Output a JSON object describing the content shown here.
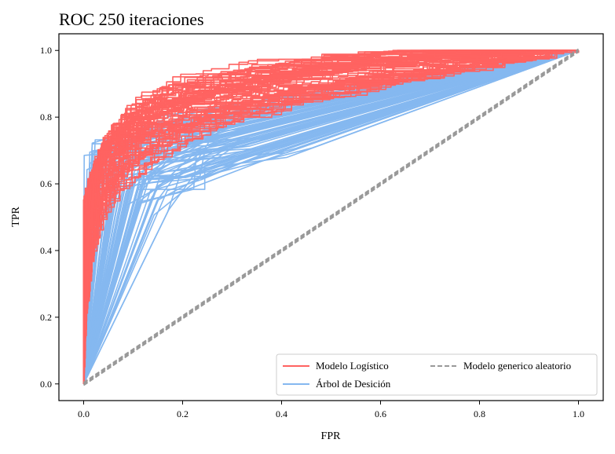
{
  "chart_data": {
    "type": "line",
    "title": "ROC 250 iteraciones",
    "xlabel": "FPR",
    "ylabel": "TPR",
    "xlim": [
      -0.05,
      1.05
    ],
    "ylim": [
      -0.05,
      1.05
    ],
    "xticks": [
      0.0,
      0.2,
      0.4,
      0.6,
      0.8,
      1.0
    ],
    "yticks": [
      0.0,
      0.2,
      0.4,
      0.6,
      0.8,
      1.0
    ],
    "xtick_labels": [
      "0.0",
      "0.2",
      "0.4",
      "0.6",
      "0.8",
      "1.0"
    ],
    "ytick_labels": [
      "0.0",
      "0.2",
      "0.4",
      "0.6",
      "0.8",
      "1.0"
    ],
    "grid": false,
    "legend_position": "lower-right",
    "iterations": 250,
    "series": [
      {
        "name": "Modelo Logístico",
        "color": "#ff6361",
        "line_style": "solid",
        "representative_curves": [
          [
            [
              0,
              0
            ],
            [
              0,
              0.3
            ],
            [
              0.01,
              0.5
            ],
            [
              0.02,
              0.6
            ],
            [
              0.05,
              0.68
            ],
            [
              0.1,
              0.76
            ],
            [
              0.15,
              0.82
            ],
            [
              0.25,
              0.87
            ],
            [
              0.4,
              0.92
            ],
            [
              0.6,
              0.96
            ],
            [
              0.8,
              0.99
            ],
            [
              1,
              1
            ]
          ],
          [
            [
              0,
              0
            ],
            [
              0,
              0.25
            ],
            [
              0.015,
              0.45
            ],
            [
              0.03,
              0.55
            ],
            [
              0.06,
              0.64
            ],
            [
              0.1,
              0.72
            ],
            [
              0.18,
              0.78
            ],
            [
              0.3,
              0.83
            ],
            [
              0.45,
              0.88
            ],
            [
              0.65,
              0.93
            ],
            [
              0.85,
              0.98
            ],
            [
              1,
              1
            ]
          ],
          [
            [
              0,
              0
            ],
            [
              0.005,
              0.35
            ],
            [
              0.02,
              0.52
            ],
            [
              0.04,
              0.63
            ],
            [
              0.08,
              0.7
            ],
            [
              0.13,
              0.77
            ],
            [
              0.2,
              0.82
            ],
            [
              0.35,
              0.88
            ],
            [
              0.5,
              0.92
            ],
            [
              0.7,
              0.96
            ],
            [
              0.9,
              0.99
            ],
            [
              1,
              1
            ]
          ],
          [
            [
              0,
              0
            ],
            [
              0,
              0.4
            ],
            [
              0.01,
              0.55
            ],
            [
              0.04,
              0.66
            ],
            [
              0.09,
              0.74
            ],
            [
              0.15,
              0.8
            ],
            [
              0.22,
              0.85
            ],
            [
              0.38,
              0.9
            ],
            [
              0.55,
              0.94
            ],
            [
              0.75,
              0.98
            ],
            [
              1,
              1
            ]
          ],
          [
            [
              0,
              0
            ],
            [
              0.01,
              0.3
            ],
            [
              0.03,
              0.5
            ],
            [
              0.07,
              0.62
            ],
            [
              0.12,
              0.7
            ],
            [
              0.2,
              0.76
            ],
            [
              0.3,
              0.81
            ],
            [
              0.5,
              0.87
            ],
            [
              0.7,
              0.92
            ],
            [
              0.88,
              0.97
            ],
            [
              1,
              1
            ]
          ],
          [
            [
              0,
              0
            ],
            [
              0,
              0.5
            ],
            [
              0.02,
              0.6
            ],
            [
              0.05,
              0.71
            ],
            [
              0.1,
              0.79
            ],
            [
              0.17,
              0.85
            ],
            [
              0.27,
              0.89
            ],
            [
              0.42,
              0.93
            ],
            [
              0.6,
              0.97
            ],
            [
              0.82,
              1.0
            ],
            [
              1,
              1
            ]
          ],
          [
            [
              0,
              0
            ],
            [
              0.005,
              0.2
            ],
            [
              0.02,
              0.4
            ],
            [
              0.05,
              0.55
            ],
            [
              0.11,
              0.65
            ],
            [
              0.18,
              0.72
            ],
            [
              0.26,
              0.78
            ],
            [
              0.4,
              0.84
            ],
            [
              0.6,
              0.9
            ],
            [
              0.8,
              0.95
            ],
            [
              1,
              1
            ]
          ],
          [
            [
              0,
              0
            ],
            [
              0,
              0.45
            ],
            [
              0.015,
              0.58
            ],
            [
              0.05,
              0.7
            ],
            [
              0.12,
              0.82
            ],
            [
              0.2,
              0.88
            ],
            [
              0.35,
              0.93
            ],
            [
              0.55,
              0.97
            ],
            [
              0.78,
              1.0
            ],
            [
              1,
              1
            ]
          ]
        ]
      },
      {
        "name": "Árbol de Desición",
        "color": "#85b8f0",
        "line_style": "solid",
        "representative_curves": [
          [
            [
              0,
              0
            ],
            [
              0.14,
              0.55
            ],
            [
              0.2,
              0.62
            ],
            [
              0.3,
              0.69
            ],
            [
              1,
              1
            ]
          ],
          [
            [
              0,
              0
            ],
            [
              0.1,
              0.6
            ],
            [
              0.2,
              0.66
            ],
            [
              0.3,
              0.72
            ],
            [
              1,
              1
            ]
          ],
          [
            [
              0,
              0
            ],
            [
              0.05,
              0.65
            ],
            [
              0.15,
              0.7
            ],
            [
              0.3,
              0.76
            ],
            [
              1,
              1
            ]
          ],
          [
            [
              0,
              0
            ],
            [
              0.04,
              0.68
            ],
            [
              0.12,
              0.73
            ],
            [
              0.25,
              0.8
            ],
            [
              1,
              1
            ]
          ],
          [
            [
              0,
              0
            ],
            [
              0.08,
              0.62
            ],
            [
              0.18,
              0.68
            ],
            [
              0.35,
              0.73
            ],
            [
              1,
              1
            ]
          ],
          [
            [
              0,
              0
            ],
            [
              0.03,
              0.7
            ],
            [
              0.1,
              0.75
            ],
            [
              0.22,
              0.78
            ],
            [
              1,
              1
            ]
          ],
          [
            [
              0,
              0
            ],
            [
              0.12,
              0.58
            ],
            [
              0.22,
              0.64
            ],
            [
              0.4,
              0.7
            ],
            [
              1,
              1
            ]
          ],
          [
            [
              0,
              0
            ],
            [
              0.06,
              0.66
            ],
            [
              0.16,
              0.71
            ],
            [
              0.28,
              0.75
            ],
            [
              1,
              1
            ]
          ]
        ]
      },
      {
        "name": "Modelo generico aleatorio",
        "color": "#999999",
        "line_style": "dashed",
        "representative_curves": [
          [
            [
              0,
              0
            ],
            [
              1,
              1
            ]
          ]
        ]
      }
    ]
  }
}
